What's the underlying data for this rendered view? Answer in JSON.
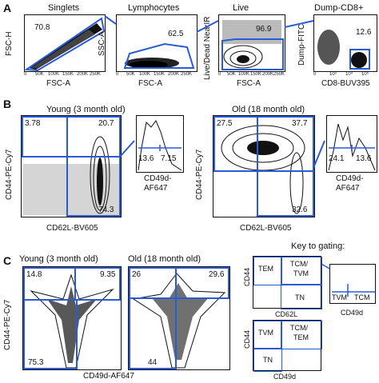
{
  "labels": {
    "A": "A",
    "B": "B",
    "C": "C"
  },
  "row_a": {
    "titles": [
      "Singlets",
      "Lymphocytes",
      "Live",
      "Dump-CD8+"
    ],
    "y_axes": [
      "FSC-H",
      "SSC-A",
      "Live/Dead NearIR",
      "Dump-FITC"
    ],
    "x_axes": [
      "FSC-A",
      "FSC-A",
      "FSC-A",
      "CD8-BUV395"
    ],
    "values": [
      "70.8",
      "62.5",
      "96.9",
      "12.6"
    ],
    "ticks_fsc": [
      "0",
      "50K",
      "100K",
      "150K",
      "200K",
      "250K"
    ],
    "ticks_cd8": [
      "0",
      "10³",
      "10⁴",
      "10⁵"
    ]
  },
  "row_b": {
    "young_title": "Young (3 month old)",
    "old_title": "Old (18 month old)",
    "y_axis": "CD44-PE-Cy7",
    "x_axis": "CD62L-BV605",
    "hist_axis_1": "CD49d-",
    "hist_axis_2": "AF647",
    "young_vals": [
      "3.78",
      "20.7",
      "74.3"
    ],
    "young_hist": [
      "13.6",
      "7.15"
    ],
    "old_vals": [
      "27.5",
      "37.7",
      "32.6"
    ],
    "old_hist": [
      "24.1",
      "13.6"
    ]
  },
  "row_c": {
    "young_title": "Young (3 month old)",
    "old_title": "Old (18 month old)",
    "y_axis": "CD44-PE-Cy7",
    "x_axis": "CD49d-AF647",
    "young_vals": [
      "14.8",
      "9.35",
      "75.3"
    ],
    "old_vals": [
      "26",
      "29.6",
      "44"
    ]
  },
  "key": {
    "title": "Key to gating:",
    "q1": [
      "TEM",
      "TCM/",
      "TVM",
      "TN"
    ],
    "q1_x": "CD62L",
    "q1_y": "CD44",
    "hist": [
      "TVM",
      "TCM"
    ],
    "hist_x": "CD49d",
    "q2": [
      "TVM",
      "TCM/",
      "TEM",
      "TN"
    ],
    "q2_x": "CD49d",
    "q2_y": "CD44"
  },
  "colors": {
    "gate": "#2a5bd7"
  }
}
